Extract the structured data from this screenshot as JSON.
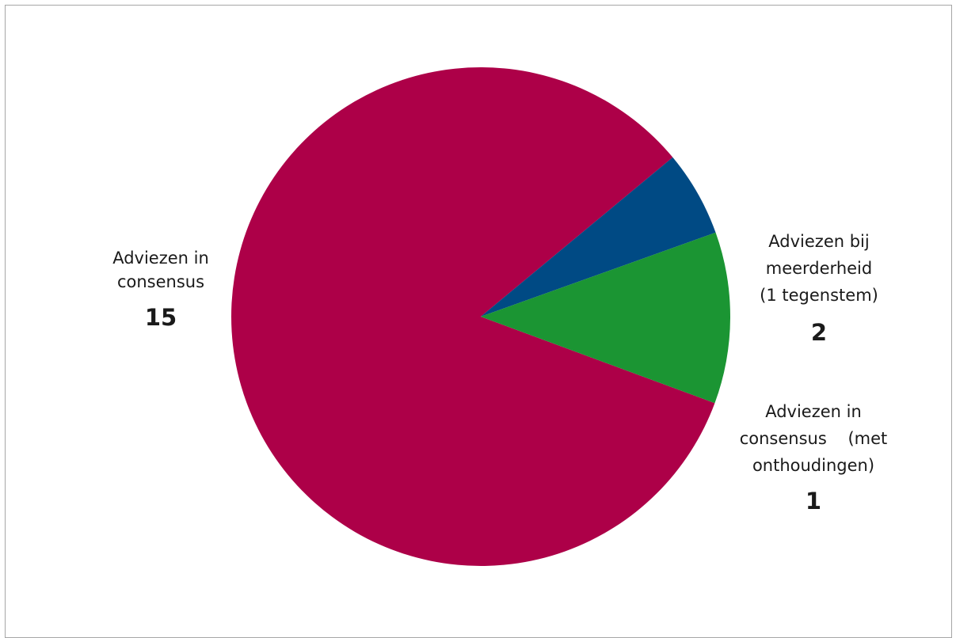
{
  "chart_data": {
    "type": "pie",
    "title": "",
    "slices": [
      {
        "label_lines": [
          "Adviezen in",
          "consensus"
        ],
        "value": 15,
        "color": "#ad0048"
      },
      {
        "label_lines": [
          "Adviezen in",
          "consensus    (met",
          "onthoudingen)"
        ],
        "value": 1,
        "color": "#004a84"
      },
      {
        "label_lines": [
          "Adviezen bij",
          "meerderheid",
          "(1 tegenstem)"
        ],
        "value": 2,
        "color": "#1b9533"
      }
    ],
    "legend": "none",
    "data_labels": "outside"
  }
}
